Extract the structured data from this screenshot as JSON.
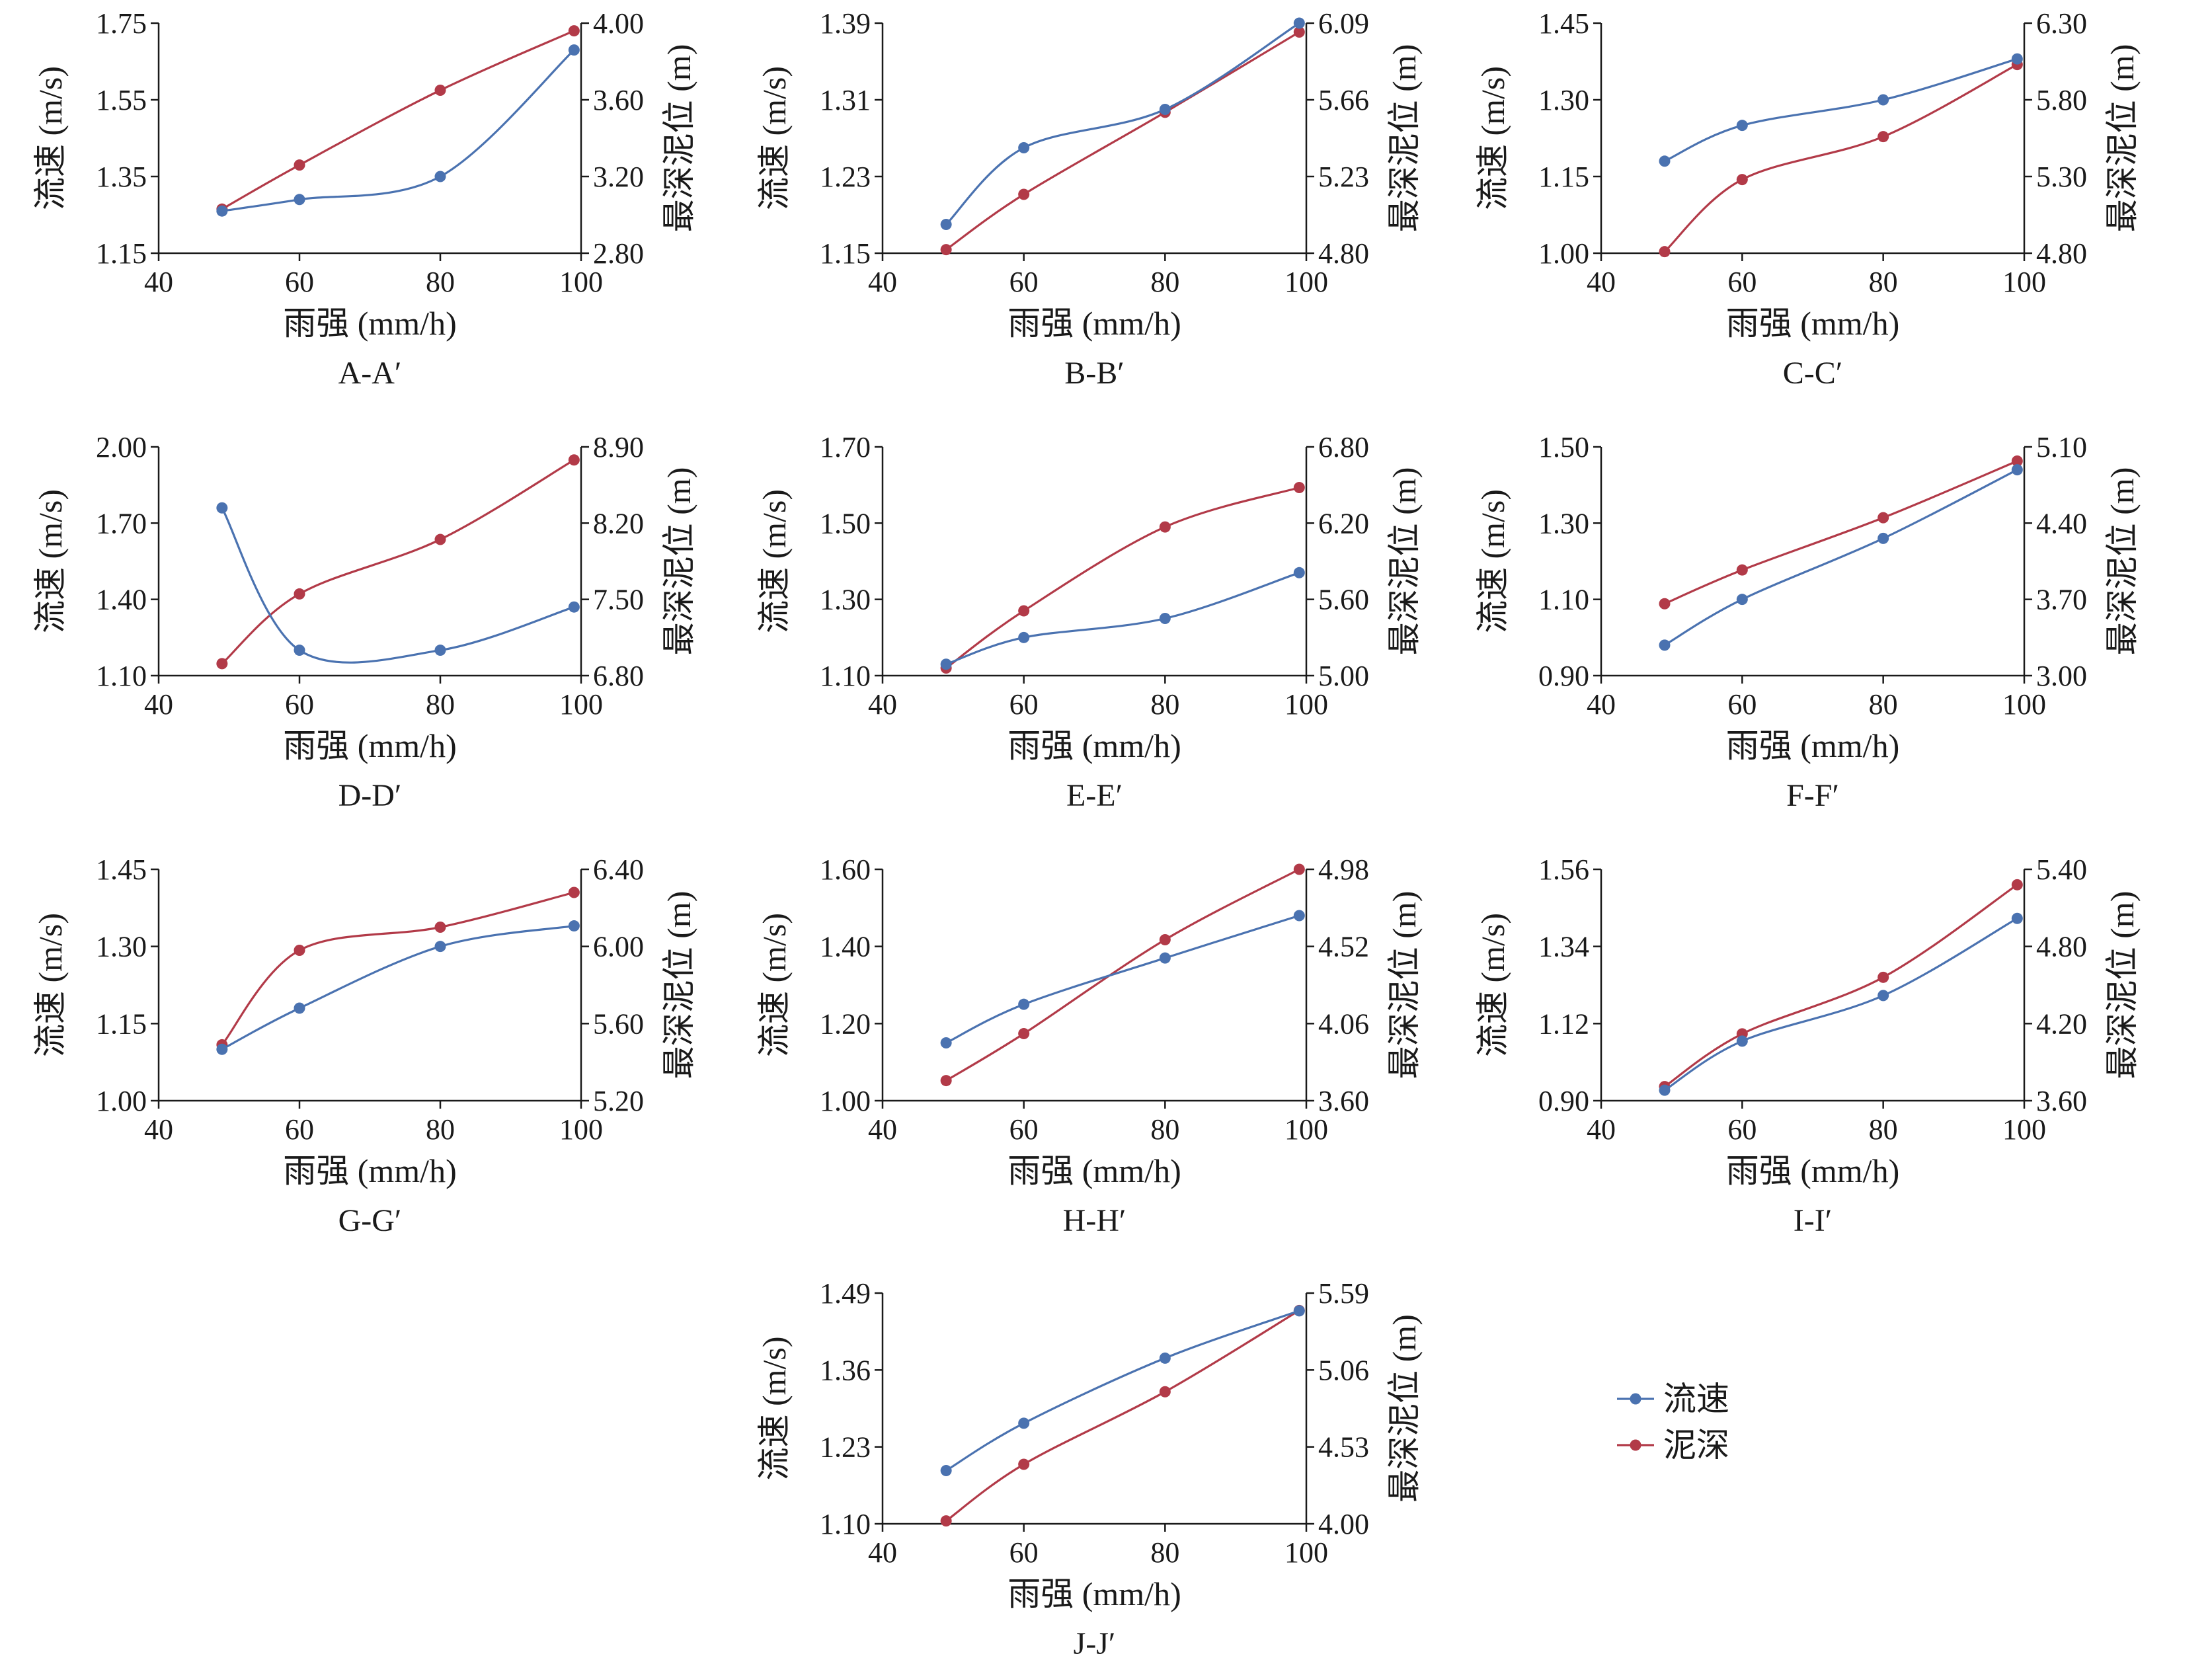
{
  "figure": {
    "x_ticks": [
      40,
      60,
      80,
      100
    ],
    "xlim": [
      40,
      100
    ],
    "xlabel": "雨强 (mm/h)",
    "ylabel_left": "流速 (m/s)",
    "ylabel_right": "最深泥位 (m)"
  },
  "legend": {
    "placement": "right of J-J′ panel",
    "items": [
      {
        "label": "流速",
        "color": "#4a72b0"
      },
      {
        "label": "泥深",
        "color": "#b23a48"
      }
    ]
  },
  "colors": {
    "speed": "#4a72b0",
    "depth": "#b23a48",
    "axis": "#1a1a1a"
  },
  "chart_data": [
    {
      "type": "line",
      "caption": "A-A′",
      "x": [
        49,
        60,
        80,
        99
      ],
      "xlabel": "雨强 (mm/h)",
      "ylabel_left": "流速 (m/s)",
      "ylabel_right": "最深泥位 (m)",
      "left_axis": {
        "ylim": [
          1.15,
          1.75
        ],
        "ticks": [
          "1.15",
          "1.35",
          "1.55",
          "1.75"
        ]
      },
      "right_axis": {
        "ylim": [
          2.8,
          4.0
        ],
        "ticks": [
          "2.80",
          "3.20",
          "3.60",
          "4.00"
        ]
      },
      "series": [
        {
          "name": "流速",
          "axis": "left",
          "values": [
            1.26,
            1.29,
            1.35,
            1.68
          ]
        },
        {
          "name": "泥深",
          "axis": "right",
          "values": [
            3.03,
            3.26,
            3.65,
            3.96
          ]
        }
      ]
    },
    {
      "type": "line",
      "caption": "B-B′",
      "x": [
        49,
        60,
        80,
        99
      ],
      "xlabel": "雨强 (mm/h)",
      "ylabel_left": "流速 (m/s)",
      "ylabel_right": "最深泥位 (m)",
      "left_axis": {
        "ylim": [
          1.15,
          1.39
        ],
        "ticks": [
          "1.15",
          "1.23",
          "1.31",
          "1.39"
        ]
      },
      "right_axis": {
        "ylim": [
          4.8,
          6.09
        ],
        "ticks": [
          "4.80",
          "5.23",
          "5.66",
          "6.09"
        ]
      },
      "series": [
        {
          "name": "流速",
          "axis": "left",
          "values": [
            1.18,
            1.26,
            1.3,
            1.39
          ]
        },
        {
          "name": "泥深",
          "axis": "right",
          "values": [
            4.82,
            5.13,
            5.59,
            6.04
          ]
        }
      ]
    },
    {
      "type": "line",
      "caption": "C-C′",
      "x": [
        49,
        60,
        80,
        99
      ],
      "xlabel": "雨强 (mm/h)",
      "ylabel_left": "流速 (m/s)",
      "ylabel_right": "最深泥位 (m)",
      "left_axis": {
        "ylim": [
          1.0,
          1.45
        ],
        "ticks": [
          "1.00",
          "1.15",
          "1.30",
          "1.45"
        ]
      },
      "right_axis": {
        "ylim": [
          4.8,
          6.3
        ],
        "ticks": [
          "4.80",
          "5.30",
          "5.80",
          "6.30"
        ]
      },
      "series": [
        {
          "name": "流速",
          "axis": "left",
          "values": [
            1.18,
            1.25,
            1.3,
            1.38
          ]
        },
        {
          "name": "泥深",
          "axis": "right",
          "values": [
            4.81,
            5.28,
            5.56,
            6.03
          ]
        }
      ]
    },
    {
      "type": "line",
      "caption": "D-D′",
      "x": [
        49,
        60,
        80,
        99
      ],
      "xlabel": "雨强 (mm/h)",
      "ylabel_left": "流速 (m/s)",
      "ylabel_right": "最深泥位 (m)",
      "left_axis": {
        "ylim": [
          1.1,
          2.0
        ],
        "ticks": [
          "1.10",
          "1.40",
          "1.70",
          "2.00"
        ]
      },
      "right_axis": {
        "ylim": [
          6.8,
          8.9
        ],
        "ticks": [
          "6.80",
          "7.50",
          "8.20",
          "8.90"
        ]
      },
      "series": [
        {
          "name": "流速",
          "axis": "left",
          "values": [
            1.76,
            1.2,
            1.2,
            1.37
          ]
        },
        {
          "name": "泥深",
          "axis": "right",
          "values": [
            6.91,
            7.55,
            8.05,
            8.78
          ]
        }
      ]
    },
    {
      "type": "line",
      "caption": "E-E′",
      "x": [
        49,
        60,
        80,
        99
      ],
      "xlabel": "雨强 (mm/h)",
      "ylabel_left": "流速 (m/s)",
      "ylabel_right": "最深泥位 (m)",
      "left_axis": {
        "ylim": [
          1.1,
          1.7
        ],
        "ticks": [
          "1.10",
          "1.30",
          "1.50",
          "1.70"
        ]
      },
      "right_axis": {
        "ylim": [
          5.0,
          6.8
        ],
        "ticks": [
          "5.00",
          "5.60",
          "6.20",
          "6.80"
        ]
      },
      "series": [
        {
          "name": "流速",
          "axis": "left",
          "values": [
            1.13,
            1.2,
            1.25,
            1.37
          ]
        },
        {
          "name": "泥深",
          "axis": "right",
          "values": [
            5.06,
            5.51,
            6.17,
            6.48
          ]
        }
      ]
    },
    {
      "type": "line",
      "caption": "F-F′",
      "x": [
        49,
        60,
        80,
        99
      ],
      "xlabel": "雨强 (mm/h)",
      "ylabel_left": "流速 (m/s)",
      "ylabel_right": "最深泥位 (m)",
      "left_axis": {
        "ylim": [
          0.9,
          1.5
        ],
        "ticks": [
          "0.90",
          "1.10",
          "1.30",
          "1.50"
        ]
      },
      "right_axis": {
        "ylim": [
          3.0,
          5.1
        ],
        "ticks": [
          "3.00",
          "3.70",
          "4.40",
          "5.10"
        ]
      },
      "series": [
        {
          "name": "流速",
          "axis": "left",
          "values": [
            0.98,
            1.1,
            1.26,
            1.44
          ]
        },
        {
          "name": "泥深",
          "axis": "right",
          "values": [
            3.66,
            3.97,
            4.45,
            4.97
          ]
        }
      ]
    },
    {
      "type": "line",
      "caption": "G-G′",
      "x": [
        49,
        60,
        80,
        99
      ],
      "xlabel": "雨强 (mm/h)",
      "ylabel_left": "流速 (m/s)",
      "ylabel_right": "最深泥位 (m)",
      "left_axis": {
        "ylim": [
          1.0,
          1.45
        ],
        "ticks": [
          "1.00",
          "1.15",
          "1.30",
          "1.45"
        ]
      },
      "right_axis": {
        "ylim": [
          5.2,
          6.4
        ],
        "ticks": [
          "5.20",
          "5.60",
          "6.00",
          "6.40"
        ]
      },
      "series": [
        {
          "name": "流速",
          "axis": "left",
          "values": [
            1.1,
            1.18,
            1.3,
            1.34
          ]
        },
        {
          "name": "泥深",
          "axis": "right",
          "values": [
            5.49,
            5.98,
            6.1,
            6.28
          ]
        }
      ]
    },
    {
      "type": "line",
      "caption": "H-H′",
      "x": [
        49,
        60,
        80,
        99
      ],
      "xlabel": "雨强 (mm/h)",
      "ylabel_left": "流速 (m/s)",
      "ylabel_right": "最深泥位 (m)",
      "left_axis": {
        "ylim": [
          1.0,
          1.6
        ],
        "ticks": [
          "1.00",
          "1.20",
          "1.40",
          "1.60"
        ]
      },
      "right_axis": {
        "ylim": [
          3.6,
          4.98
        ],
        "ticks": [
          "3.60",
          "4.06",
          "4.52",
          "4.98"
        ]
      },
      "series": [
        {
          "name": "流速",
          "axis": "left",
          "values": [
            1.15,
            1.25,
            1.37,
            1.48
          ]
        },
        {
          "name": "泥深",
          "axis": "right",
          "values": [
            3.72,
            4.0,
            4.56,
            4.98
          ]
        }
      ]
    },
    {
      "type": "line",
      "caption": "I-I′",
      "x": [
        49,
        60,
        80,
        99
      ],
      "xlabel": "雨强 (mm/h)",
      "ylabel_left": "流速 (m/s)",
      "ylabel_right": "最深泥位 (m)",
      "left_axis": {
        "ylim": [
          0.9,
          1.56
        ],
        "ticks": [
          "0.90",
          "1.12",
          "1.34",
          "1.56"
        ]
      },
      "right_axis": {
        "ylim": [
          3.6,
          5.4
        ],
        "ticks": [
          "3.60",
          "4.20",
          "4.80",
          "5.40"
        ]
      },
      "series": [
        {
          "name": "流速",
          "axis": "left",
          "values": [
            0.93,
            1.07,
            1.2,
            1.42
          ]
        },
        {
          "name": "泥深",
          "axis": "right",
          "values": [
            3.71,
            4.12,
            4.56,
            5.28
          ]
        }
      ]
    },
    {
      "type": "line",
      "caption": "J-J′",
      "x": [
        49,
        60,
        80,
        99
      ],
      "xlabel": "雨强 (mm/h)",
      "ylabel_left": "流速 (m/s)",
      "ylabel_right": "最深泥位 (m)",
      "left_axis": {
        "ylim": [
          1.1,
          1.49
        ],
        "ticks": [
          "1.10",
          "1.23",
          "1.36",
          "1.49"
        ]
      },
      "right_axis": {
        "ylim": [
          4.0,
          5.59
        ],
        "ticks": [
          "4.00",
          "4.53",
          "5.06",
          "5.59"
        ]
      },
      "series": [
        {
          "name": "流速",
          "axis": "left",
          "values": [
            1.19,
            1.27,
            1.38,
            1.46
          ]
        },
        {
          "name": "泥深",
          "axis": "right",
          "values": [
            4.02,
            4.41,
            4.91,
            5.47
          ]
        }
      ]
    }
  ]
}
